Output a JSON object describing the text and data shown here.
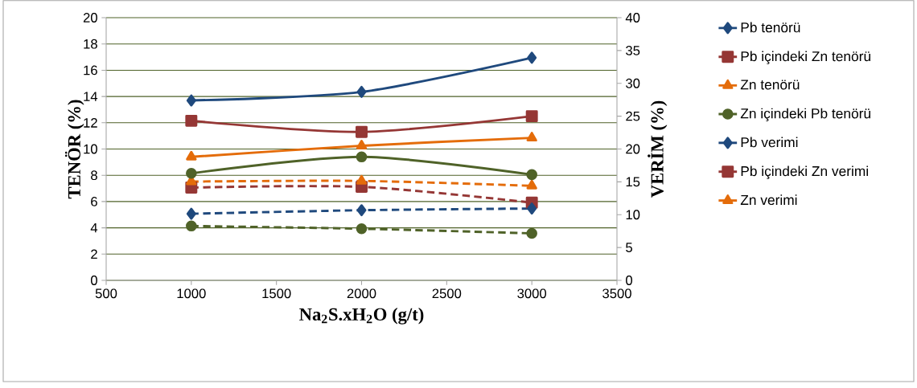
{
  "chart_data": {
    "type": "line",
    "xlabel": "Na$_{2}$S.xH$_{2}$O (g/t)",
    "ylabel": "TENÖR (%)",
    "y2label": "VERİM (%)",
    "x": [
      1000,
      2000,
      3000
    ],
    "xlim": [
      500,
      3500
    ],
    "xticks": [
      500,
      1000,
      1500,
      2000,
      2500,
      3000,
      3500
    ],
    "ylim": [
      0,
      20
    ],
    "yticks": [
      0,
      2,
      4,
      6,
      8,
      10,
      12,
      14,
      16,
      18,
      20
    ],
    "y2lim": [
      0,
      40
    ],
    "y2ticks": [
      0,
      5,
      10,
      15,
      20,
      25,
      30,
      35,
      40
    ],
    "grid": "y",
    "legend": "right",
    "series": [
      {
        "name": "Pb tenörü",
        "color": "#1f497d",
        "values": [
          5.07,
          5.34,
          5.47
        ],
        "marker": "diamond",
        "line_style": "dashed"
      },
      {
        "name": "Pb içindeki Zn tenörü",
        "color": "#953735",
        "values": [
          7.06,
          7.12,
          5.92
        ],
        "marker": "square",
        "line_style": "dashed"
      },
      {
        "name": "Zn tenörü",
        "color": "#e46c0a",
        "values": [
          7.52,
          7.57,
          7.2
        ],
        "marker": "triangle",
        "line_style": "dashed"
      },
      {
        "name": "Zn içindeki Pb tenörü",
        "color": "#4f6228",
        "values": [
          4.14,
          3.93,
          3.58
        ],
        "marker": "circle",
        "line_style": "dashed"
      },
      {
        "name": "Pb verimi",
        "color": "#1f497d",
        "values": [
          27.4,
          28.7,
          33.9
        ],
        "marker": "diamond",
        "line_style": "solid",
        "axis": "y2"
      },
      {
        "name": "Pb içindeki Zn verimi",
        "color": "#953735",
        "values": [
          24.3,
          22.6,
          25.0
        ],
        "marker": "square",
        "line_style": "solid",
        "axis": "y2"
      },
      {
        "name": "Zn verimi",
        "color": "#e46c0a",
        "values": [
          18.8,
          20.5,
          21.7
        ],
        "marker": "triangle",
        "line_style": "solid",
        "axis": "y2"
      },
      {
        "color": "#4f6228",
        "values": [
          16.3,
          18.8,
          16.1
        ],
        "marker": "circle",
        "line_style": "solid",
        "axis": "y2"
      }
    ]
  }
}
